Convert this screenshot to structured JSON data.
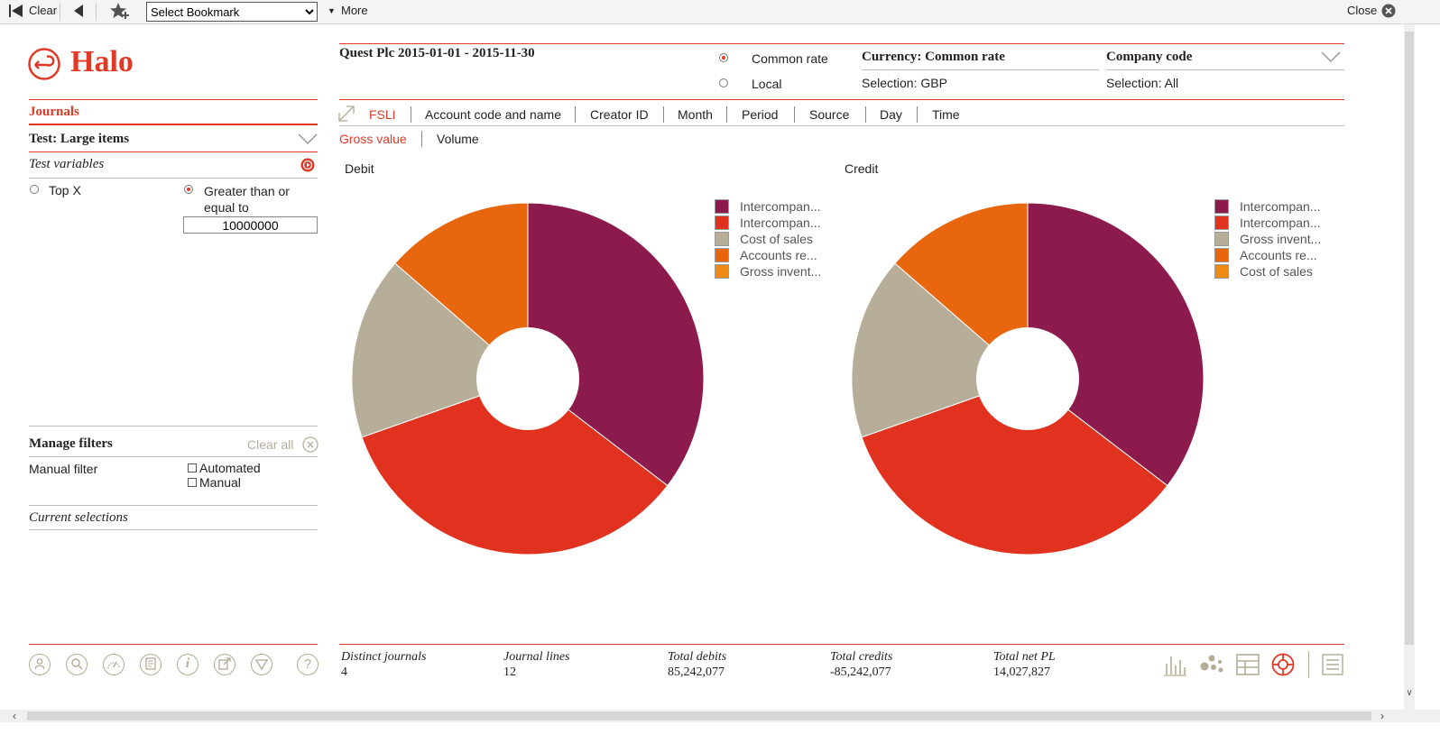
{
  "toolbar": {
    "clear_label": "Clear",
    "bookmark_select": "Select Bookmark",
    "more_label": "More",
    "close_label": "Close"
  },
  "brand": {
    "name": "Halo",
    "color": "#e03a27"
  },
  "left": {
    "section_title": "Journals",
    "test_title": "Test: Large items",
    "test_variables": "Test variables",
    "option_topx": "Top X",
    "option_gte": "Greater than or equal to",
    "gte_value": "10000000",
    "manage_filters": "Manage filters",
    "clear_all": "Clear all",
    "manual_filter": "Manual filter",
    "opt_automated": "Automated",
    "opt_manual": "Manual",
    "current_selections": "Current selections"
  },
  "header": {
    "title": "Quest Plc 2015-01-01 - 2015-11-30",
    "rate_common": "Common rate",
    "rate_local": "Local",
    "currency_title": "Currency: Common rate",
    "currency_selection": "Selection: GBP",
    "company_title": "Company code",
    "company_selection": "Selection: All"
  },
  "dimension_tabs": [
    "FSLI",
    "Account code and name",
    "Creator ID",
    "Month",
    "Period",
    "Source",
    "Day",
    "Time"
  ],
  "measure_tabs": [
    "Gross value",
    "Volume"
  ],
  "colors": {
    "plum": "#8c1a4c",
    "red": "#e0321e",
    "taupe": "#b6ae98",
    "orange": "#e8660d",
    "amber": "#ef8a14"
  },
  "chart_data": [
    {
      "type": "pie",
      "title": "Debit",
      "legend_position": "right",
      "labels": [
        "Intercompan...",
        "Intercompan...",
        "Cost of sales",
        "Accounts re...",
        "Gross invent..."
      ],
      "colors": [
        "#8c1a4c",
        "#e0321e",
        "#b6ae98",
        "#e8660d",
        "#ef8a14"
      ],
      "values": [
        35.4,
        34.2,
        16.8,
        13.6,
        0
      ]
    },
    {
      "type": "pie",
      "title": "Credit",
      "legend_position": "right",
      "labels": [
        "Intercompan...",
        "Intercompan...",
        "Gross invent...",
        "Accounts re...",
        "Cost of sales"
      ],
      "colors": [
        "#8c1a4c",
        "#e0321e",
        "#b6ae98",
        "#e8660d",
        "#ef8a14"
      ],
      "values": [
        35.4,
        34.2,
        16.8,
        13.6,
        0
      ]
    }
  ],
  "stats": [
    {
      "label": "Distinct journals",
      "value": "4"
    },
    {
      "label": "Journal lines",
      "value": "12"
    },
    {
      "label": "Total debits",
      "value": "85,242,077"
    },
    {
      "label": "Total credits",
      "value": "-85,242,077"
    },
    {
      "label": "Total net PL",
      "value": "14,027,827"
    }
  ],
  "footer_icons": [
    "user-icon",
    "search-icon",
    "gauge-icon",
    "document-icon",
    "info-icon",
    "export-icon",
    "filter-icon",
    "help-icon"
  ],
  "view_icons": [
    "bar-chart-icon",
    "scatter-icon",
    "table-icon",
    "pie-target-icon",
    "list-icon"
  ]
}
